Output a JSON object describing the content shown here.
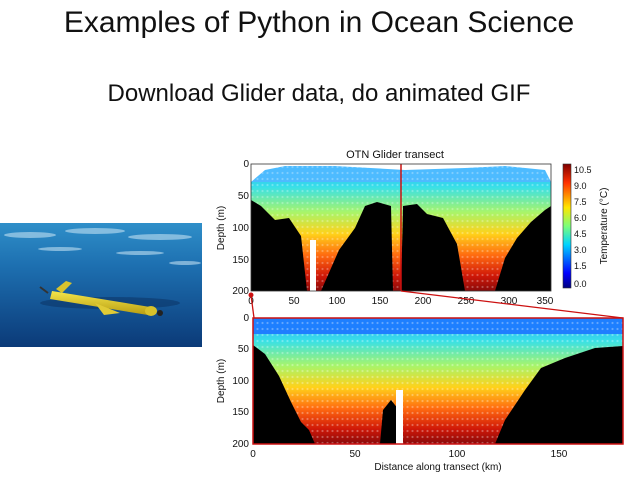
{
  "slide": {
    "title": "Examples of Python in Ocean Science",
    "subtitle": "Download Glider data, do animated GIF"
  },
  "photo": {
    "icon": "underwater-glider-photo"
  },
  "figure": {
    "top_panel": {
      "title": "OTN Glider transect",
      "ylabel": "Depth (m)",
      "yticks": [
        "0",
        "50",
        "100",
        "150",
        "200"
      ],
      "xticks": [
        "0",
        "50",
        "100",
        "150",
        "200",
        "250",
        "300",
        "350"
      ]
    },
    "bottom_panel": {
      "ylabel": "Depth (m)",
      "xlabel": "Distance along transect (km)",
      "yticks": [
        "0",
        "50",
        "100",
        "150",
        "200"
      ],
      "xticks": [
        "0",
        "50",
        "100",
        "150"
      ]
    },
    "colorbar": {
      "label": "Temperature (°C)",
      "ticks": [
        "10.5",
        "9.0",
        "7.5",
        "6.0",
        "4.5",
        "3.0",
        "1.5",
        "0.0"
      ]
    }
  }
}
